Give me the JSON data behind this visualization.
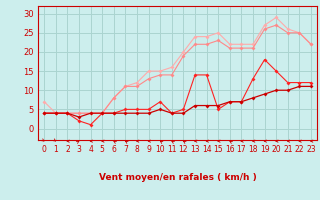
{
  "bg_color": "#cceeed",
  "grid_color": "#aad4d0",
  "line1_color": "#ffaaaa",
  "line2_color": "#ff8888",
  "line3_color": "#ff2222",
  "line4_color": "#cc0000",
  "xlabel": "Vent moyen/en rafales ( km/h )",
  "ylabel_ticks": [
    0,
    5,
    10,
    15,
    20,
    25,
    30
  ],
  "xlim": [
    -0.5,
    23.5
  ],
  "ylim": [
    -3,
    32
  ],
  "x": [
    0,
    1,
    2,
    3,
    4,
    5,
    6,
    7,
    8,
    9,
    10,
    11,
    12,
    13,
    14,
    15,
    16,
    17,
    18,
    19,
    20,
    21,
    22,
    23
  ],
  "line1_y": [
    7,
    4,
    4,
    4,
    4,
    4,
    8,
    11,
    12,
    15,
    15,
    16,
    20,
    24,
    24,
    25,
    22,
    22,
    22,
    27,
    29,
    26,
    25,
    22
  ],
  "line2_y": [
    4,
    4,
    4,
    4,
    4,
    4,
    8,
    11,
    11,
    13,
    14,
    14,
    19,
    22,
    22,
    23,
    21,
    21,
    21,
    26,
    27,
    25,
    25,
    22
  ],
  "line3_y": [
    4,
    4,
    4,
    2,
    1,
    4,
    4,
    5,
    5,
    5,
    7,
    4,
    5,
    14,
    14,
    5,
    7,
    7,
    13,
    18,
    15,
    12,
    12,
    12
  ],
  "line4_y": [
    4,
    4,
    4,
    3,
    4,
    4,
    4,
    4,
    4,
    4,
    5,
    4,
    4,
    6,
    6,
    6,
    7,
    7,
    8,
    9,
    10,
    10,
    11,
    11
  ],
  "arrow_angles": [
    135,
    135,
    270,
    45,
    270,
    270,
    315,
    315,
    270,
    270,
    315,
    315,
    315,
    270,
    270,
    270,
    315,
    270,
    270,
    270,
    270,
    270,
    270,
    270
  ],
  "title_color": "#cc0000",
  "tick_fontsize": 5.5,
  "label_fontsize": 6.5
}
